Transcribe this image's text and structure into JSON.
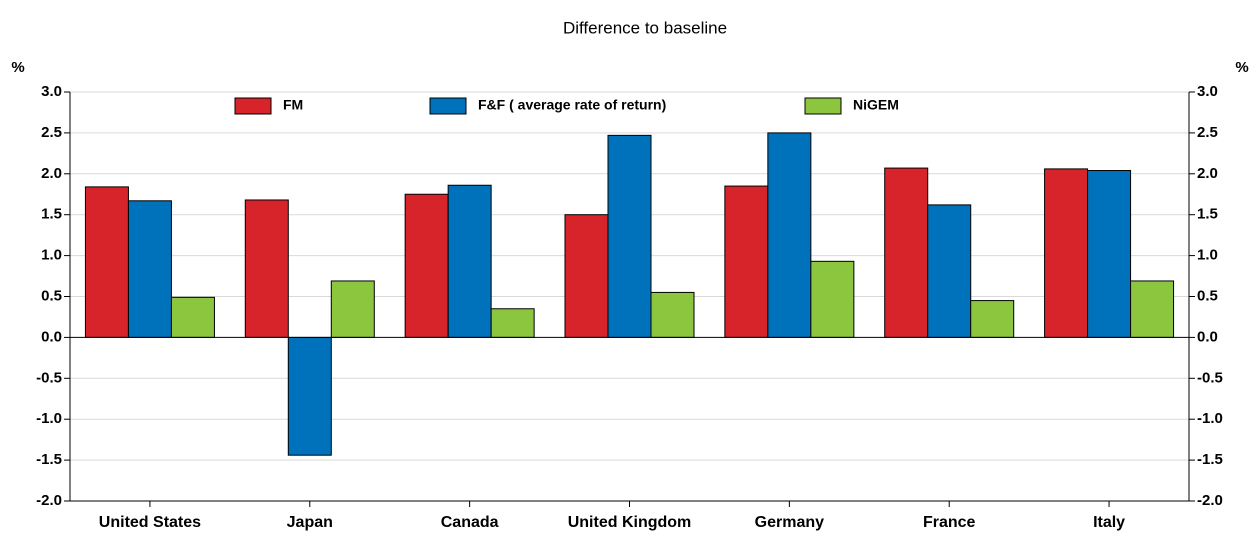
{
  "chart_data": {
    "type": "bar",
    "title": "Difference to baseline",
    "y_label": "%",
    "y2_label": "%",
    "categories": [
      "United States",
      "Japan",
      "Canada",
      "United Kingdom",
      "Germany",
      "France",
      "Italy"
    ],
    "series": [
      {
        "name": "FM",
        "color": "#d7242a",
        "values": [
          1.84,
          1.68,
          1.75,
          1.5,
          1.85,
          2.07,
          2.06
        ]
      },
      {
        "name": "F&F ( average rate of return)",
        "color": "#0072bc",
        "values": [
          1.67,
          -1.44,
          1.86,
          2.47,
          2.5,
          1.62,
          2.04
        ]
      },
      {
        "name": "NiGEM",
        "color": "#8cc63f",
        "values": [
          0.49,
          0.69,
          0.35,
          0.55,
          0.93,
          0.45,
          0.69
        ]
      }
    ],
    "ylim": [
      -2,
      3
    ],
    "yticks": [
      {
        "value": -2,
        "label": "-2.0"
      },
      -1.5,
      {
        "value": -1,
        "label": "-1.0"
      },
      -0.5,
      {
        "value": 0,
        "label": "0.0"
      },
      0.5,
      {
        "value": 1,
        "label": "1.0"
      },
      1.5,
      {
        "value": 2,
        "label": "2.0"
      },
      2.5,
      {
        "value": 3,
        "label": "3.0"
      }
    ],
    "y2lim": [
      -2,
      3
    ],
    "y2ticks": [
      {
        "value": -2,
        "label": "-2.0"
      },
      -1.5,
      {
        "value": -1,
        "label": "-1.0"
      },
      -0.5,
      {
        "value": 0,
        "label": "0.0"
      },
      0.5,
      {
        "value": 1,
        "label": "1.0"
      },
      1.5,
      {
        "value": 2,
        "label": "2.0"
      },
      2.5,
      {
        "value": 3,
        "label": "3.0"
      }
    ],
    "grid": true,
    "legend": "top"
  }
}
